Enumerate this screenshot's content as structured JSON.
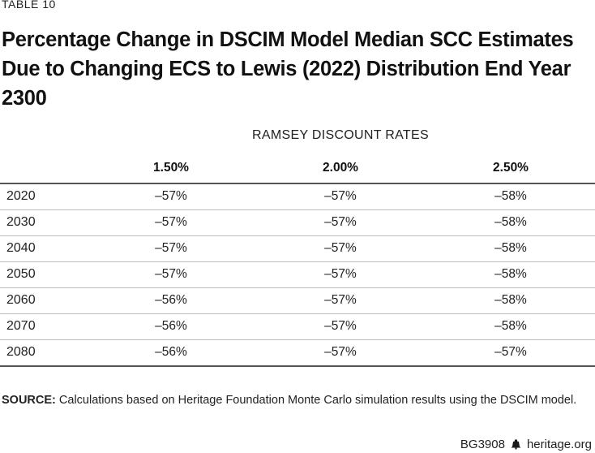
{
  "table_label": "TABLE 10",
  "title": "Percentage Change in DSCIM Model Median SCC Estimates Due to Changing ECS to Lewis (2022) Distribution End Year 2300",
  "group_header": "RAMSEY DISCOUNT RATES",
  "columns": [
    "1.50%",
    "2.00%",
    "2.50%"
  ],
  "rows": [
    {
      "year": "2020",
      "values": [
        "–57%",
        "–57%",
        "–58%"
      ]
    },
    {
      "year": "2030",
      "values": [
        "–57%",
        "–57%",
        "–58%"
      ]
    },
    {
      "year": "2040",
      "values": [
        "–57%",
        "–57%",
        "–58%"
      ]
    },
    {
      "year": "2050",
      "values": [
        "–57%",
        "–57%",
        "–58%"
      ]
    },
    {
      "year": "2060",
      "values": [
        "–56%",
        "–57%",
        "–58%"
      ]
    },
    {
      "year": "2070",
      "values": [
        "–56%",
        "–57%",
        "–58%"
      ]
    },
    {
      "year": "2080",
      "values": [
        "–56%",
        "–57%",
        "–57%"
      ]
    }
  ],
  "source": {
    "label": "SOURCE:",
    "text": " Calculations based on Heritage Foundation Monte Carlo simulation results using the DSCIM model."
  },
  "footer": {
    "code": "BG3908",
    "icon": "liberty-bell-icon",
    "site": "heritage.org"
  }
}
